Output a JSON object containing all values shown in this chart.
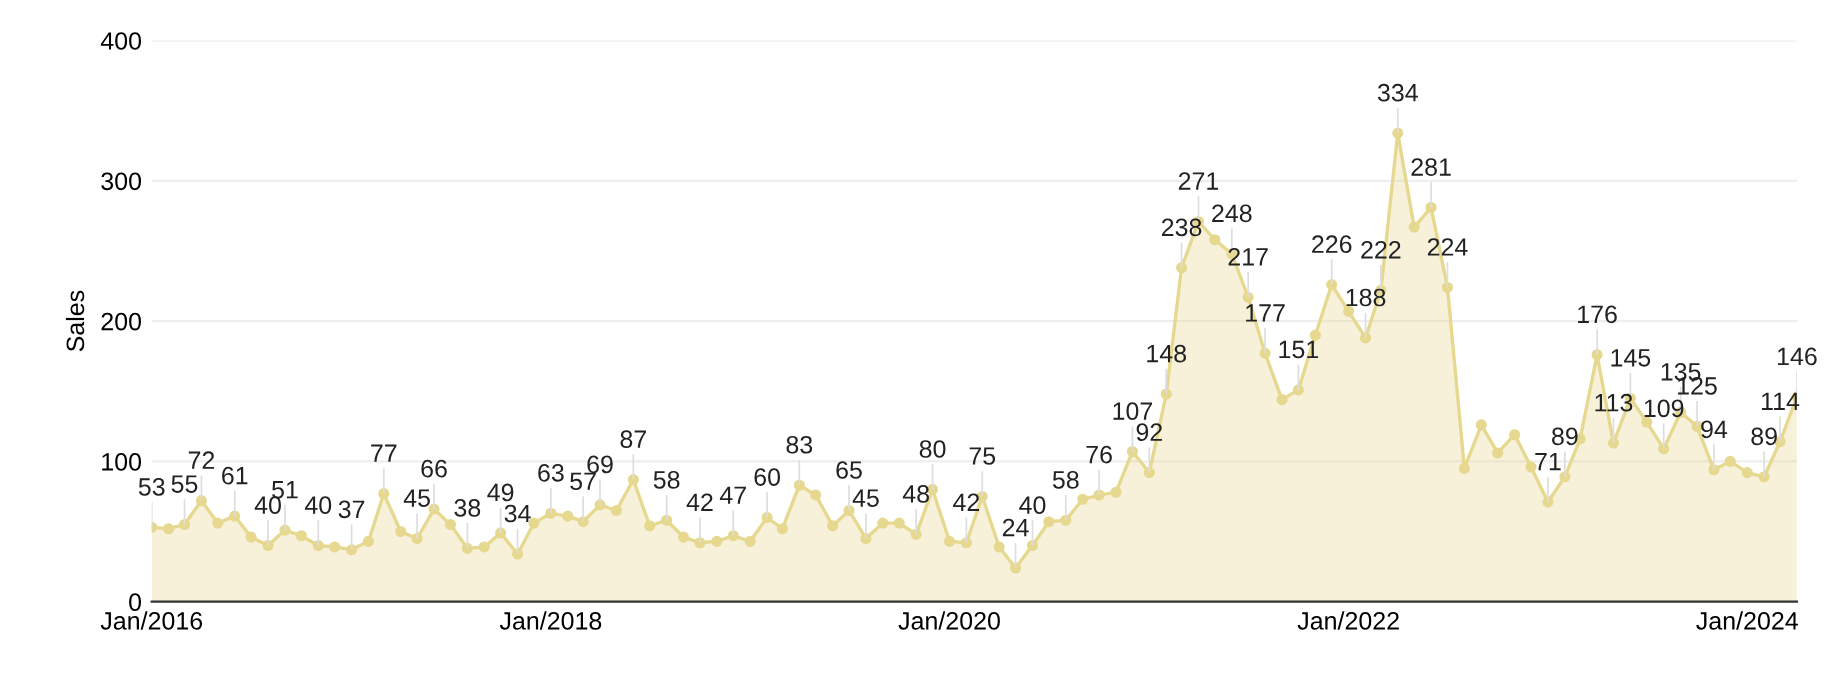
{
  "chart_data": {
    "type": "area",
    "ylabel": "Sales",
    "x": [
      "2016-01",
      "2016-02",
      "2016-03",
      "2016-04",
      "2016-05",
      "2016-06",
      "2016-07",
      "2016-08",
      "2016-09",
      "2016-10",
      "2016-11",
      "2016-12",
      "2017-01",
      "2017-02",
      "2017-03",
      "2017-04",
      "2017-05",
      "2017-06",
      "2017-07",
      "2017-08",
      "2017-09",
      "2017-10",
      "2017-11",
      "2017-12",
      "2018-01",
      "2018-02",
      "2018-03",
      "2018-04",
      "2018-05",
      "2018-06",
      "2018-07",
      "2018-08",
      "2018-09",
      "2018-10",
      "2018-11",
      "2018-12",
      "2019-01",
      "2019-02",
      "2019-03",
      "2019-04",
      "2019-05",
      "2019-06",
      "2019-07",
      "2019-08",
      "2019-09",
      "2019-10",
      "2019-11",
      "2019-12",
      "2020-01",
      "2020-02",
      "2020-03",
      "2020-04",
      "2020-05",
      "2020-06",
      "2020-07",
      "2020-08",
      "2020-09",
      "2020-10",
      "2020-11",
      "2020-12",
      "2021-01",
      "2021-02",
      "2021-03",
      "2021-04",
      "2021-05",
      "2021-06",
      "2021-07",
      "2021-08",
      "2021-09",
      "2021-10",
      "2021-11",
      "2021-12",
      "2022-01",
      "2022-02",
      "2022-03",
      "2022-04",
      "2022-05",
      "2022-06",
      "2022-07",
      "2022-08",
      "2022-09",
      "2022-10",
      "2022-11",
      "2022-12",
      "2023-01",
      "2023-02",
      "2023-03",
      "2023-04",
      "2023-05",
      "2023-06",
      "2023-07",
      "2023-08",
      "2023-09",
      "2023-10",
      "2023-11",
      "2023-12",
      "2024-01",
      "2024-02",
      "2024-03",
      "2024-04"
    ],
    "series": [
      {
        "color": "#e6d88f",
        "values": [
          53,
          52,
          55,
          72,
          56,
          61,
          46,
          40,
          51,
          47,
          40,
          39,
          37,
          43,
          77,
          50,
          45,
          66,
          55,
          38,
          39,
          49,
          34,
          56,
          63,
          61,
          57,
          69,
          65,
          87,
          54,
          58,
          46,
          42,
          43,
          47,
          43,
          60,
          52,
          83,
          76,
          54,
          65,
          45,
          56,
          56,
          48,
          80,
          43,
          42,
          75,
          39,
          24,
          40,
          57,
          58,
          73,
          76,
          78,
          107,
          92,
          148,
          238,
          271,
          258,
          248,
          217,
          177,
          144,
          151,
          190,
          226,
          207,
          188,
          222,
          334,
          267,
          281,
          224,
          95,
          126,
          106,
          119,
          96,
          71,
          89,
          116,
          176,
          113,
          145,
          128,
          109,
          135,
          125,
          94,
          100,
          92,
          89,
          114,
          146
        ],
        "value_labels": [
          "53",
          null,
          "55",
          "72",
          null,
          "61",
          null,
          "40",
          "51",
          null,
          "40",
          null,
          "37",
          null,
          "77",
          null,
          "45",
          "66",
          null,
          "38",
          null,
          "49",
          "34",
          null,
          "63",
          null,
          "57",
          "69",
          null,
          "87",
          null,
          "58",
          null,
          "42",
          null,
          "47",
          null,
          "60",
          null,
          "83",
          null,
          null,
          "65",
          "45",
          null,
          null,
          "48",
          "80",
          null,
          "42",
          "75",
          null,
          "24",
          "40",
          null,
          "58",
          null,
          "76",
          null,
          "107",
          "92",
          "148",
          "238",
          "271",
          null,
          "248",
          "217",
          "177",
          null,
          "151",
          null,
          "226",
          null,
          "188",
          "222",
          "334",
          null,
          "281",
          "224",
          null,
          null,
          null,
          null,
          null,
          "71",
          "89",
          null,
          "176",
          "113",
          "145",
          null,
          "109",
          "135",
          "125",
          "94",
          null,
          null,
          "89",
          "114",
          "146"
        ]
      }
    ],
    "xlim": [
      "2016-01",
      "2024-04"
    ],
    "xticks": [
      {
        "value": "2016-01",
        "label": "Jan/2016"
      },
      {
        "value": "2018-01",
        "label": "Jan/2018"
      },
      {
        "value": "2020-01",
        "label": "Jan/2020"
      },
      {
        "value": "2022-01",
        "label": "Jan/2022"
      },
      {
        "value": "2024-01",
        "label": "Jan/2024"
      }
    ],
    "ylim": [
      0,
      400
    ],
    "yticks": [
      0,
      100,
      200,
      300,
      400
    ],
    "grid": "y",
    "marker": "circle",
    "legend": false
  }
}
